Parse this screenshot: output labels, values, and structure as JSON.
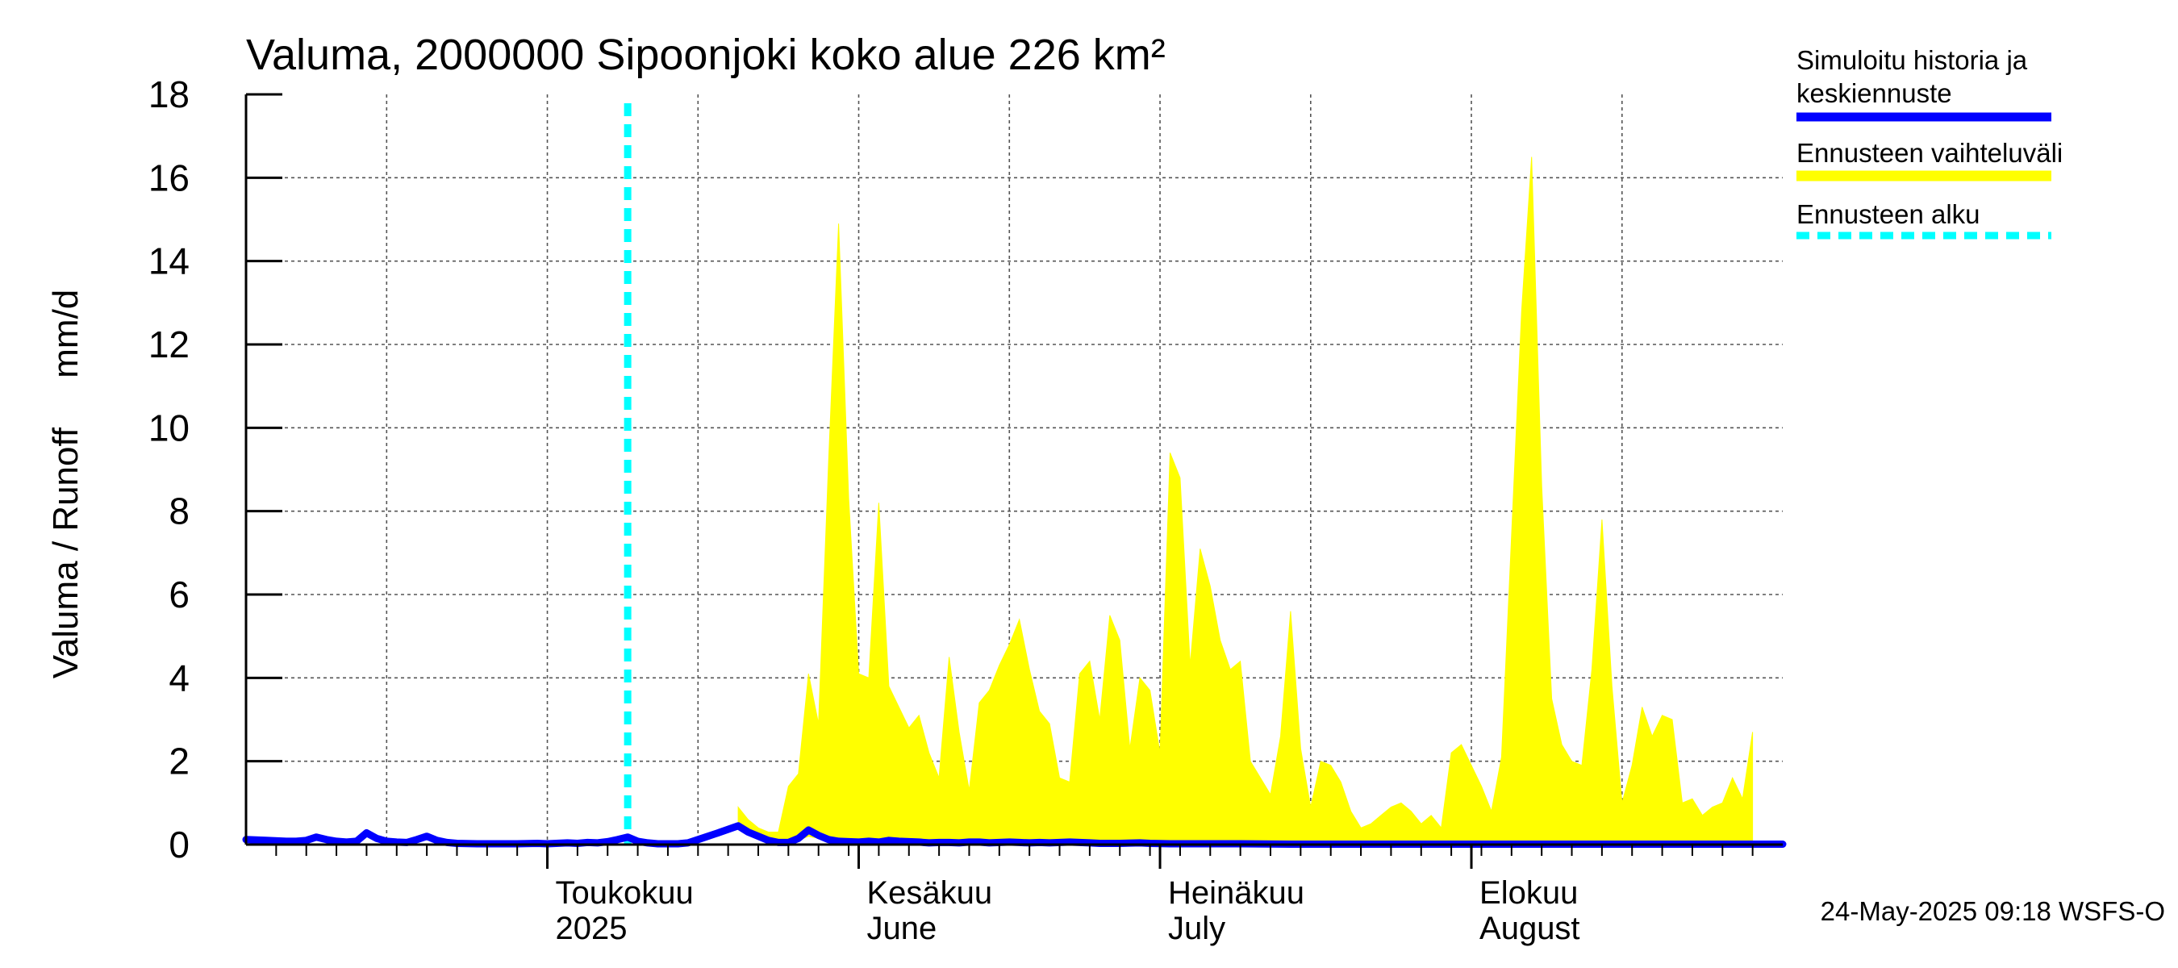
{
  "chart_data": {
    "type": "area",
    "title": "Valuma, 2000000 Sipoonjoki koko alue 226 km²",
    "ylabel": "Valuma / Runoff     mm/d",
    "ylim": [
      0,
      18
    ],
    "y_ticks": [
      0,
      2,
      4,
      6,
      8,
      10,
      12,
      14,
      16,
      18
    ],
    "x_unit": "day of year 2025",
    "xlim": [
      91,
      244
    ],
    "month_labels": [
      {
        "fi": "Toukokuu",
        "en": "2025",
        "day": 121
      },
      {
        "fi": "Kesäkuu",
        "en": "June",
        "day": 152
      },
      {
        "fi": "Heinäkuu",
        "en": "July",
        "day": 182
      },
      {
        "fi": "Elokuu",
        "en": "August",
        "day": 213
      }
    ],
    "forecast_start_day": 129,
    "legend": {
      "history_label_line1": "Simuloitu historia ja",
      "history_label_line2": "keskiennuste",
      "range_label": "Ennusteen vaihteluväli",
      "start_label": "Ennusteen alku"
    },
    "footer": "24-May-2025 09:18 WSFS-O",
    "colors": {
      "history": "#0000ff",
      "range": "#ffff00",
      "forecast_start": "#00ffff"
    },
    "series": [
      {
        "name": "Simuloitu historia ja keskiennuste",
        "points": [
          [
            91,
            0.12
          ],
          [
            93,
            0.1
          ],
          [
            95,
            0.08
          ],
          [
            96,
            0.08
          ],
          [
            97,
            0.1
          ],
          [
            98,
            0.18
          ],
          [
            99,
            0.12
          ],
          [
            100,
            0.08
          ],
          [
            101,
            0.06
          ],
          [
            102,
            0.08
          ],
          [
            103,
            0.28
          ],
          [
            104,
            0.15
          ],
          [
            105,
            0.08
          ],
          [
            106,
            0.06
          ],
          [
            107,
            0.05
          ],
          [
            108,
            0.12
          ],
          [
            109,
            0.2
          ],
          [
            110,
            0.1
          ],
          [
            111,
            0.05
          ],
          [
            112,
            0.03
          ],
          [
            114,
            0.02
          ],
          [
            116,
            0.02
          ],
          [
            118,
            0.02
          ],
          [
            120,
            0.03
          ],
          [
            121,
            0.02
          ],
          [
            123,
            0.04
          ],
          [
            124,
            0.03
          ],
          [
            125,
            0.05
          ],
          [
            126,
            0.04
          ],
          [
            127,
            0.07
          ],
          [
            128,
            0.12
          ],
          [
            129,
            0.18
          ],
          [
            130,
            0.08
          ],
          [
            131,
            0.04
          ],
          [
            132,
            0.02
          ],
          [
            133,
            0.02
          ],
          [
            134,
            0.02
          ],
          [
            135,
            0.04
          ],
          [
            136,
            0.12
          ],
          [
            138,
            0.28
          ],
          [
            140,
            0.45
          ],
          [
            141,
            0.3
          ],
          [
            143,
            0.1
          ],
          [
            144,
            0.05
          ],
          [
            145,
            0.05
          ],
          [
            146,
            0.15
          ],
          [
            147,
            0.35
          ],
          [
            148,
            0.22
          ],
          [
            149,
            0.12
          ],
          [
            150,
            0.08
          ],
          [
            152,
            0.06
          ],
          [
            153,
            0.08
          ],
          [
            154,
            0.06
          ],
          [
            155,
            0.1
          ],
          [
            156,
            0.08
          ],
          [
            158,
            0.06
          ],
          [
            159,
            0.04
          ],
          [
            160,
            0.05
          ],
          [
            161,
            0.05
          ],
          [
            162,
            0.04
          ],
          [
            163,
            0.06
          ],
          [
            164,
            0.06
          ],
          [
            165,
            0.04
          ],
          [
            166,
            0.05
          ],
          [
            167,
            0.06
          ],
          [
            168,
            0.05
          ],
          [
            169,
            0.04
          ],
          [
            170,
            0.05
          ],
          [
            171,
            0.04
          ],
          [
            172,
            0.05
          ],
          [
            173,
            0.06
          ],
          [
            175,
            0.04
          ],
          [
            176,
            0.03
          ],
          [
            178,
            0.03
          ],
          [
            180,
            0.04
          ],
          [
            181,
            0.03
          ],
          [
            183,
            0.02
          ],
          [
            185,
            0.02
          ],
          [
            187,
            0.02
          ],
          [
            190,
            0.02
          ],
          [
            195,
            0.01
          ],
          [
            200,
            0.01
          ],
          [
            205,
            0.01
          ],
          [
            210,
            0.01
          ],
          [
            215,
            0.01
          ],
          [
            220,
            0.01
          ],
          [
            225,
            0.01
          ],
          [
            230,
            0.01
          ],
          [
            235,
            0.01
          ],
          [
            240,
            0.01
          ],
          [
            244,
            0.01
          ]
        ]
      },
      {
        "name": "Ennusteen vaihteluväli",
        "upper": [
          [
            140,
            0.9
          ],
          [
            141,
            0.6
          ],
          [
            142,
            0.4
          ],
          [
            143,
            0.3
          ],
          [
            144,
            0.3
          ],
          [
            145,
            1.4
          ],
          [
            146,
            1.7
          ],
          [
            147,
            4.1
          ],
          [
            148,
            2.9
          ],
          [
            149,
            9.2
          ],
          [
            150,
            14.9
          ],
          [
            151,
            8.3
          ],
          [
            152,
            4.1
          ],
          [
            153,
            4.0
          ],
          [
            154,
            8.2
          ],
          [
            155,
            3.8
          ],
          [
            156,
            3.3
          ],
          [
            157,
            2.8
          ],
          [
            158,
            3.1
          ],
          [
            159,
            2.2
          ],
          [
            160,
            1.6
          ],
          [
            161,
            4.5
          ],
          [
            162,
            2.7
          ],
          [
            163,
            1.3
          ],
          [
            164,
            3.4
          ],
          [
            165,
            3.7
          ],
          [
            166,
            4.3
          ],
          [
            167,
            4.8
          ],
          [
            168,
            5.4
          ],
          [
            169,
            4.2
          ],
          [
            170,
            3.2
          ],
          [
            171,
            2.9
          ],
          [
            172,
            1.6
          ],
          [
            173,
            1.5
          ],
          [
            174,
            4.1
          ],
          [
            175,
            4.4
          ],
          [
            176,
            3.0
          ],
          [
            177,
            5.5
          ],
          [
            178,
            4.9
          ],
          [
            179,
            2.3
          ],
          [
            180,
            4.0
          ],
          [
            181,
            3.7
          ],
          [
            182,
            2.2
          ],
          [
            183,
            9.4
          ],
          [
            184,
            8.8
          ],
          [
            185,
            4.3
          ],
          [
            186,
            7.1
          ],
          [
            187,
            6.2
          ],
          [
            188,
            4.9
          ],
          [
            189,
            4.2
          ],
          [
            190,
            4.4
          ],
          [
            191,
            2.0
          ],
          [
            192,
            1.6
          ],
          [
            193,
            1.2
          ],
          [
            194,
            2.6
          ],
          [
            195,
            5.6
          ],
          [
            196,
            2.3
          ],
          [
            197,
            0.9
          ],
          [
            198,
            2.0
          ],
          [
            199,
            1.9
          ],
          [
            200,
            1.5
          ],
          [
            201,
            0.8
          ],
          [
            202,
            0.4
          ],
          [
            203,
            0.5
          ],
          [
            204,
            0.7
          ],
          [
            205,
            0.9
          ],
          [
            206,
            1.0
          ],
          [
            207,
            0.8
          ],
          [
            208,
            0.5
          ],
          [
            209,
            0.7
          ],
          [
            210,
            0.4
          ],
          [
            211,
            2.2
          ],
          [
            212,
            2.4
          ],
          [
            213,
            1.9
          ],
          [
            214,
            1.4
          ],
          [
            215,
            0.8
          ],
          [
            216,
            2.1
          ],
          [
            217,
            7.4
          ],
          [
            218,
            12.8
          ],
          [
            219,
            16.5
          ],
          [
            220,
            8.6
          ],
          [
            221,
            3.5
          ],
          [
            222,
            2.4
          ],
          [
            223,
            2.0
          ],
          [
            224,
            1.9
          ],
          [
            225,
            4.2
          ],
          [
            226,
            7.8
          ],
          [
            227,
            3.8
          ],
          [
            228,
            1.0
          ],
          [
            229,
            1.9
          ],
          [
            230,
            3.3
          ],
          [
            231,
            2.6
          ],
          [
            232,
            3.1
          ],
          [
            233,
            3.0
          ],
          [
            234,
            1.0
          ],
          [
            235,
            1.1
          ],
          [
            236,
            0.7
          ],
          [
            237,
            0.9
          ],
          [
            238,
            1.0
          ],
          [
            239,
            1.6
          ],
          [
            240,
            1.1
          ],
          [
            241,
            2.7
          ]
        ],
        "lower": [
          [
            140,
            0.45
          ],
          [
            141,
            0.3
          ],
          [
            143,
            0.08
          ],
          [
            144,
            0.04
          ],
          [
            146,
            0.1
          ],
          [
            147,
            0.2
          ],
          [
            149,
            0.1
          ],
          [
            152,
            0.05
          ],
          [
            155,
            0.05
          ],
          [
            160,
            0.03
          ],
          [
            170,
            0.03
          ],
          [
            180,
            0.02
          ],
          [
            190,
            0.01
          ],
          [
            200,
            0.01
          ],
          [
            210,
            0.0
          ],
          [
            220,
            0.0
          ],
          [
            230,
            0.0
          ],
          [
            241,
            0.0
          ]
        ]
      }
    ]
  }
}
